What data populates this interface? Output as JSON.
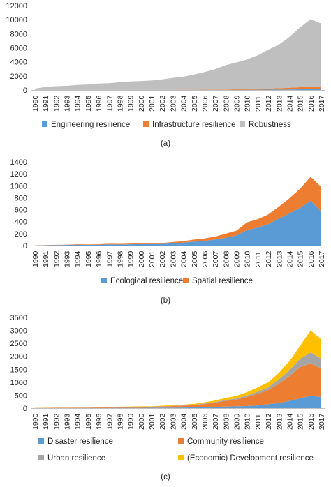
{
  "years": [
    "1990",
    "1991",
    "1992",
    "1993",
    "1994",
    "1995",
    "1996",
    "1997",
    "1998",
    "1999",
    "2000",
    "2001",
    "2002",
    "2003",
    "2004",
    "2005",
    "2006",
    "2007",
    "2008",
    "2009",
    "2010",
    "2011",
    "2012",
    "2013",
    "2014",
    "2015",
    "2016",
    "2017"
  ],
  "panels": [
    {
      "caption": "(a)",
      "chart_data": {
        "type": "area",
        "stacked": true,
        "categories": [
          "1990",
          "1991",
          "1992",
          "1993",
          "1994",
          "1995",
          "1996",
          "1997",
          "1998",
          "1999",
          "2000",
          "2001",
          "2002",
          "2003",
          "2004",
          "2005",
          "2006",
          "2007",
          "2008",
          "2009",
          "2010",
          "2011",
          "2012",
          "2013",
          "2014",
          "2015",
          "2016",
          "2017"
        ],
        "ylim": [
          0,
          12000
        ],
        "yticks": [
          0,
          2000,
          4000,
          6000,
          8000,
          10000,
          12000
        ],
        "legend_position": "bottom",
        "series": [
          {
            "name": "Engineering resilience",
            "color": "#5b9bd5",
            "values": [
              5,
              5,
              5,
              5,
              5,
              5,
              5,
              5,
              5,
              5,
              5,
              5,
              5,
              5,
              10,
              10,
              10,
              15,
              20,
              25,
              30,
              40,
              50,
              60,
              80,
              100,
              120,
              110
            ]
          },
          {
            "name": "Infrastructure resilience",
            "color": "#ed7d31",
            "values": [
              5,
              5,
              5,
              5,
              5,
              5,
              5,
              5,
              5,
              10,
              10,
              10,
              15,
              20,
              25,
              30,
              40,
              50,
              60,
              80,
              100,
              130,
              160,
              200,
              250,
              300,
              350,
              330
            ]
          },
          {
            "name": "Robustness",
            "color": "#bfbfbf",
            "values": [
              190,
              440,
              540,
              590,
              700,
              770,
              900,
              950,
              1100,
              1200,
              1260,
              1330,
              1500,
              1700,
              1850,
              2150,
              2500,
              2900,
              3450,
              3800,
              4200,
              4750,
              5500,
              6200,
              7200,
              8500,
              9600,
              9000
            ]
          }
        ]
      }
    },
    {
      "caption": "(b)",
      "chart_data": {
        "type": "area",
        "stacked": true,
        "categories": [
          "1990",
          "1991",
          "1992",
          "1993",
          "1994",
          "1995",
          "1996",
          "1997",
          "1998",
          "1999",
          "2000",
          "2001",
          "2002",
          "2003",
          "2004",
          "2005",
          "2006",
          "2007",
          "2008",
          "2009",
          "2010",
          "2011",
          "2012",
          "2013",
          "2014",
          "2015",
          "2016",
          "2017"
        ],
        "ylim": [
          0,
          1400
        ],
        "yticks": [
          0,
          200,
          400,
          600,
          800,
          1000,
          1200,
          1400
        ],
        "legend_position": "bottom",
        "series": [
          {
            "name": "Ecological resilience",
            "color": "#5b9bd5",
            "values": [
              3,
              5,
              8,
              10,
              15,
              12,
              15,
              20,
              18,
              22,
              25,
              25,
              28,
              40,
              50,
              65,
              80,
              100,
              130,
              170,
              260,
              300,
              360,
              450,
              540,
              630,
              750,
              570
            ]
          },
          {
            "name": "Spatial resilience",
            "color": "#ed7d31",
            "values": [
              2,
              3,
              5,
              5,
              8,
              7,
              8,
              10,
              10,
              12,
              15,
              15,
              15,
              20,
              25,
              35,
              40,
              50,
              70,
              80,
              130,
              140,
              160,
              200,
              250,
              320,
              400,
              410
            ]
          }
        ]
      }
    },
    {
      "caption": "(c)",
      "chart_data": {
        "type": "area",
        "stacked": true,
        "categories": [
          "1990",
          "1991",
          "1992",
          "1993",
          "1994",
          "1995",
          "1996",
          "1997",
          "1998",
          "1999",
          "2000",
          "2001",
          "2002",
          "2003",
          "2004",
          "2005",
          "2006",
          "2007",
          "2008",
          "2009",
          "2010",
          "2011",
          "2012",
          "2013",
          "2014",
          "2015",
          "2016",
          "2017"
        ],
        "ylim": [
          0,
          3500
        ],
        "yticks": [
          0,
          500,
          1000,
          1500,
          2000,
          2500,
          3000,
          3500
        ],
        "legend_position": "bottom",
        "series": [
          {
            "name": "Disaster resilience",
            "color": "#5b9bd5",
            "values": [
              2,
              3,
              4,
              4,
              5,
              6,
              6,
              8,
              10,
              10,
              12,
              15,
              18,
              20,
              25,
              30,
              40,
              50,
              60,
              70,
              80,
              100,
              150,
              200,
              280,
              380,
              480,
              430
            ]
          },
          {
            "name": "Community resilience",
            "color": "#ed7d31",
            "values": [
              5,
              8,
              10,
              10,
              12,
              15,
              20,
              25,
              30,
              35,
              40,
              40,
              50,
              60,
              70,
              90,
              120,
              160,
              220,
              260,
              350,
              450,
              550,
              750,
              950,
              1200,
              1250,
              1100
            ]
          },
          {
            "name": "Urban resilience",
            "color": "#a5a5a5",
            "values": [
              1,
              1,
              2,
              2,
              2,
              3,
              3,
              3,
              4,
              5,
              5,
              5,
              6,
              8,
              10,
              15,
              20,
              25,
              35,
              45,
              60,
              80,
              100,
              160,
              230,
              320,
              420,
              380
            ]
          },
          {
            "name": "(Economic) Development resilience",
            "color": "#ffc000",
            "values": [
              3,
              4,
              5,
              6,
              7,
              8,
              9,
              10,
              12,
              15,
              15,
              15,
              20,
              25,
              30,
              35,
              45,
              60,
              80,
              100,
              130,
              170,
              200,
              250,
              350,
              500,
              850,
              750
            ]
          }
        ]
      }
    }
  ]
}
